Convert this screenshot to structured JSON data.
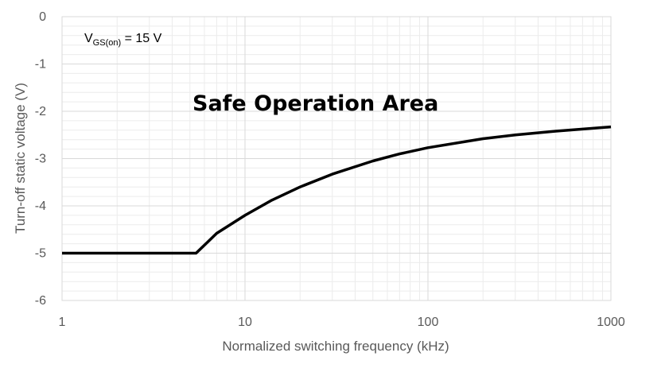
{
  "chart_data": {
    "type": "line",
    "title": "",
    "xlabel": "Normalized switching frequency (kHz)",
    "ylabel": "Turn-off static voltage (V)",
    "xscale": "log",
    "xlim": [
      1,
      1000
    ],
    "ylim": [
      -6,
      0
    ],
    "xticks": [
      1,
      10,
      100,
      1000
    ],
    "xtick_labels": [
      "1",
      "10",
      "100",
      "1000"
    ],
    "yticks": [
      0,
      -1,
      -2,
      -3,
      -4,
      -5,
      -6
    ],
    "ytick_labels": [
      "0",
      "-1",
      "-2",
      "-3",
      "-4",
      "-5",
      "-6"
    ],
    "grid": true,
    "legend": "none",
    "annotations": {
      "region_label": "Safe Operation Area",
      "condition_prefix": "V",
      "condition_subscript": "GS(on)",
      "condition_suffix": " = 15 V"
    },
    "series": [
      {
        "color": "#000000",
        "x": [
          1,
          5.4,
          7,
          10,
          14,
          20,
          30,
          50,
          70,
          100,
          200,
          300,
          500,
          1000
        ],
        "y": [
          -5,
          -5,
          -4.58,
          -4.2,
          -3.88,
          -3.6,
          -3.33,
          -3.05,
          -2.9,
          -2.77,
          -2.58,
          -2.5,
          -2.42,
          -2.33
        ]
      }
    ]
  }
}
